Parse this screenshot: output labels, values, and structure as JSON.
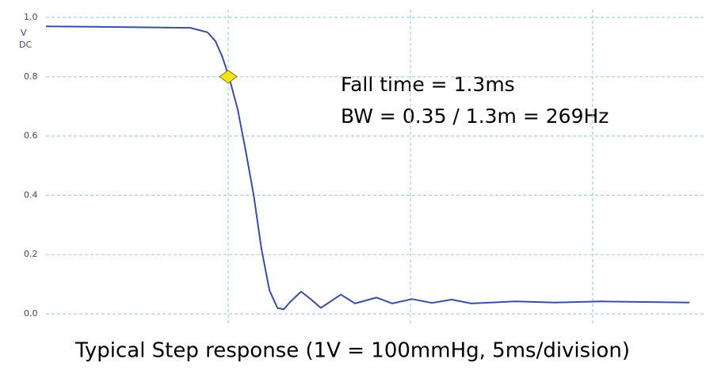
{
  "chart_data": {
    "type": "line",
    "title": "Typical Step response (1V = 100mmHg, 5ms/division)",
    "y_unit_lines": [
      "V",
      "DC"
    ],
    "annotations": [
      "Fall time = 1.3ms",
      "BW = 0.35 / 1.3m = 269Hz"
    ],
    "x": [
      0,
      3.96,
      4.43,
      4.65,
      4.83,
      5.02,
      5.26,
      5.48,
      5.7,
      5.91,
      6.13,
      6.35,
      6.52,
      6.7,
      7.0,
      7.26,
      7.54,
      8.09,
      8.48,
      9.07,
      9.5,
      10.04,
      10.59,
      11.13,
      11.67,
      12.87,
      13.96,
      15.26,
      17.65
    ],
    "series": [
      {
        "color": "#3a4f9e",
        "values": [
          0.97,
          0.965,
          0.95,
          0.92,
          0.87,
          0.8,
          0.69,
          0.55,
          0.4,
          0.22,
          0.08,
          0.02,
          0.015,
          0.04,
          0.075,
          0.05,
          0.02,
          0.065,
          0.035,
          0.055,
          0.035,
          0.05,
          0.037,
          0.048,
          0.035,
          0.042,
          0.038,
          0.042,
          0.038
        ]
      }
    ],
    "marker": {
      "x": 5,
      "y": 0.8,
      "color": "#f3e51c"
    },
    "xlim": [
      0,
      17.65
    ],
    "xticks": [
      5,
      10,
      15
    ],
    "ylim": [
      0,
      1
    ],
    "yticks": [
      {
        "value": 0,
        "label": "0.0"
      },
      0.2,
      0.4,
      0.6,
      0.8,
      {
        "value": 1,
        "label": "1.0"
      }
    ],
    "grid": true
  }
}
